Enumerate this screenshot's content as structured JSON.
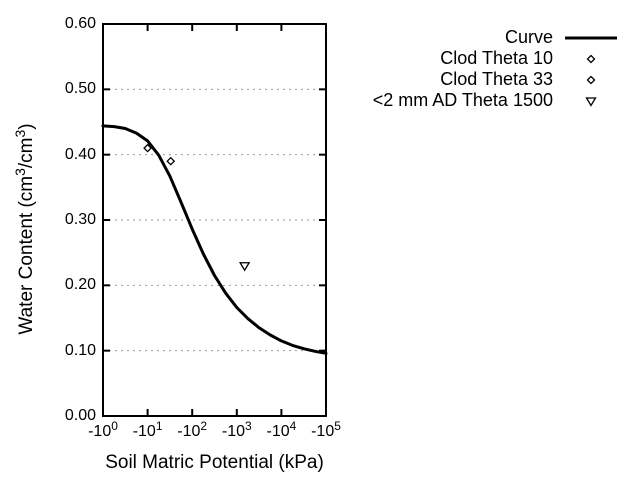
{
  "chart_data": {
    "type": "line",
    "title": "",
    "xlabel": "Soil Matric Potential (kPa)",
    "ylabel_parts": [
      "Water Content (cm",
      "3",
      "/cm",
      "3",
      ")"
    ],
    "x_axis": {
      "scale": "negative-log10-kPa",
      "log_range": [
        0,
        5
      ],
      "tick_prefix": "-10",
      "tick_exponents": [
        "0",
        "1",
        "2",
        "3",
        "4",
        "5"
      ],
      "grid": false
    },
    "y_axis": {
      "range": [
        0,
        0.6
      ],
      "tick_values": [
        0,
        0.1,
        0.2,
        0.3,
        0.4,
        0.5,
        0.6
      ],
      "tick_labels": [
        "0.00",
        "0.10",
        "0.20",
        "0.30",
        "0.40",
        "0.50",
        "0.60"
      ],
      "grid_values": [
        0.1,
        0.2,
        0.3,
        0.4,
        0.5
      ],
      "grid_style": "dotted"
    },
    "series": {
      "curve": {
        "name": "Curve",
        "log10_x": [
          0,
          0.25,
          0.5,
          0.75,
          1,
          1.25,
          1.5,
          1.75,
          2,
          2.25,
          2.5,
          2.75,
          3,
          3.25,
          3.5,
          3.75,
          4,
          4.25,
          4.5,
          4.75,
          5
        ],
        "theta": [
          0.444,
          0.443,
          0.44,
          0.433,
          0.421,
          0.399,
          0.367,
          0.327,
          0.286,
          0.248,
          0.215,
          0.188,
          0.166,
          0.149,
          0.135,
          0.124,
          0.115,
          0.108,
          0.103,
          0.099,
          0.096
        ]
      },
      "points": [
        {
          "name": "Clod Theta 10",
          "marker": "diamond",
          "kpa": -10,
          "theta": 0.41
        },
        {
          "name": "Clod Theta 33",
          "marker": "diamond",
          "kpa": -33,
          "theta": 0.39
        },
        {
          "name": "<2 mm AD Theta 1500",
          "marker": "triangle-down",
          "kpa": -1500,
          "theta": 0.23
        }
      ]
    },
    "legend": [
      {
        "label": "Curve",
        "marker": "line"
      },
      {
        "label": "Clod Theta 10",
        "marker": "diamond"
      },
      {
        "label": "Clod Theta 33",
        "marker": "diamond"
      },
      {
        "label": "<2 mm AD Theta 1500",
        "marker": "triangle-down"
      }
    ],
    "legend_position": "top-right-outside",
    "colors": {
      "line": "#000000",
      "grid": "#999999",
      "text": "#000000",
      "background": "#ffffff",
      "marker_fill": "#ffffff"
    }
  }
}
